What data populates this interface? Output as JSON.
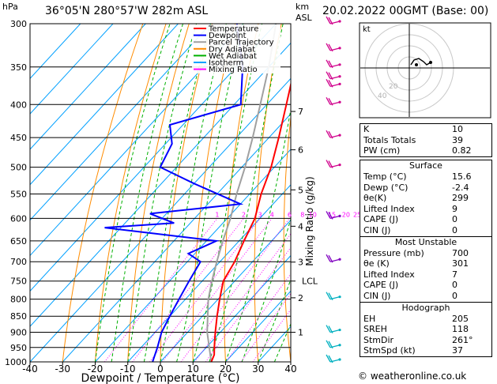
{
  "header": {
    "units": "hPa",
    "location": "36°05'N 280°57'W 282m ASL",
    "km_label": "km",
    "asl_label": "ASL",
    "datetime": "20.02.2022 00GMT (Base: 00)"
  },
  "legend": [
    {
      "label": "Temperature",
      "color": "#ff0000"
    },
    {
      "label": "Dewpoint",
      "color": "#0000ff"
    },
    {
      "label": "Parcel Trajectory",
      "color": "#a0a0a0"
    },
    {
      "label": "Dry Adiabat",
      "color": "#ff8c00"
    },
    {
      "label": "Wet Adiabat",
      "color": "#00b000"
    },
    {
      "label": "Isotherm",
      "color": "#00a0ff"
    },
    {
      "label": "Mixing Ratio",
      "color": "#ff00ff"
    }
  ],
  "chart_data": {
    "type": "skew-t",
    "xlabel": "Dewpoint / Temperature (°C)",
    "ylabel": "Mixing Ratio (g/kg)",
    "pressure_levels": [
      300,
      350,
      400,
      450,
      500,
      550,
      600,
      650,
      700,
      750,
      800,
      850,
      900,
      950,
      1000
    ],
    "x_ticks": [
      -40,
      -30,
      -20,
      -10,
      0,
      10,
      20,
      30,
      40
    ],
    "km_ticks": [
      {
        "km": "7",
        "p": 410
      },
      {
        "km": "6",
        "p": 470
      },
      {
        "km": "5",
        "p": 542
      },
      {
        "km": "4",
        "p": 617
      },
      {
        "km": "3",
        "p": 701
      },
      {
        "km": "LCL",
        "p": 750
      },
      {
        "km": "2",
        "p": 796
      },
      {
        "km": "1",
        "p": 900
      }
    ],
    "mixing_ratio_labels": [
      "1",
      "2",
      "3",
      "4",
      "6",
      "8",
      "10",
      "15",
      "20",
      "25"
    ],
    "mixing_ratio_values": [
      1,
      2,
      3,
      4,
      6,
      8,
      10,
      15,
      20,
      25
    ],
    "temperature": [
      [
        1000,
        15.6
      ],
      [
        975,
        14.5
      ],
      [
        950,
        12.5
      ],
      [
        925,
        10.5
      ],
      [
        900,
        8.5
      ],
      [
        850,
        4.5
      ],
      [
        800,
        0.5
      ],
      [
        750,
        -3.5
      ],
      [
        700,
        -5.5
      ],
      [
        650,
        -8.5
      ],
      [
        600,
        -11.5
      ],
      [
        550,
        -16.5
      ],
      [
        500,
        -21
      ],
      [
        450,
        -27
      ],
      [
        400,
        -34
      ],
      [
        350,
        -42
      ],
      [
        300,
        -51
      ]
    ],
    "dewpoint": [
      [
        1000,
        -2.4
      ],
      [
        950,
        -5
      ],
      [
        900,
        -8
      ],
      [
        850,
        -10
      ],
      [
        800,
        -12
      ],
      [
        750,
        -14
      ],
      [
        700,
        -16
      ],
      [
        680,
        -22
      ],
      [
        650,
        -17
      ],
      [
        620,
        -55
      ],
      [
        610,
        -35
      ],
      [
        590,
        -45
      ],
      [
        570,
        -20
      ],
      [
        530,
        -40
      ],
      [
        500,
        -55
      ],
      [
        460,
        -58
      ],
      [
        430,
        -64
      ],
      [
        400,
        -48
      ],
      [
        350,
        -58
      ],
      [
        300,
        -72
      ]
    ],
    "parcel": [
      [
        1000,
        15.6
      ],
      [
        900,
        6
      ],
      [
        800,
        -3
      ],
      [
        750,
        -7
      ],
      [
        700,
        -11
      ],
      [
        650,
        -15
      ],
      [
        600,
        -19
      ],
      [
        550,
        -24
      ],
      [
        500,
        -29
      ],
      [
        450,
        -35
      ],
      [
        400,
        -42
      ],
      [
        350,
        -50
      ],
      [
        300,
        -60
      ]
    ],
    "wind_levels_hpa": [
      300,
      330,
      350,
      365,
      375,
      400,
      450,
      500,
      600,
      700,
      800,
      900,
      950,
      1000
    ]
  },
  "hodograph": {
    "unit_label": "kt",
    "ring_labels": [
      "20",
      "40"
    ]
  },
  "indices": {
    "general": [
      {
        "label": "K",
        "value": "10"
      },
      {
        "label": "Totals Totals",
        "value": "39"
      },
      {
        "label": "PW (cm)",
        "value": "0.82"
      }
    ],
    "surface_title": "Surface",
    "surface": [
      {
        "label": "Temp (°C)",
        "value": "15.6"
      },
      {
        "label": "Dewp (°C)",
        "value": "-2.4"
      },
      {
        "label": "θe(K)",
        "value": "299"
      },
      {
        "label": "Lifted Index",
        "value": "9"
      },
      {
        "label": "CAPE (J)",
        "value": "0"
      },
      {
        "label": "CIN (J)",
        "value": "0"
      }
    ],
    "unstable_title": "Most Unstable",
    "unstable": [
      {
        "label": "Pressure (mb)",
        "value": "700"
      },
      {
        "label": "θe (K)",
        "value": "301"
      },
      {
        "label": "Lifted Index",
        "value": "7"
      },
      {
        "label": "CAPE (J)",
        "value": "0"
      },
      {
        "label": "CIN (J)",
        "value": "0"
      }
    ],
    "hodo_title": "Hodograph",
    "hodo": [
      {
        "label": "EH",
        "value": "205"
      },
      {
        "label": "SREH",
        "value": "118"
      },
      {
        "label": "StmDir",
        "value": "261°"
      },
      {
        "label": "StmSpd (kt)",
        "value": "37"
      }
    ]
  },
  "footer": "© weatheronline.co.uk"
}
